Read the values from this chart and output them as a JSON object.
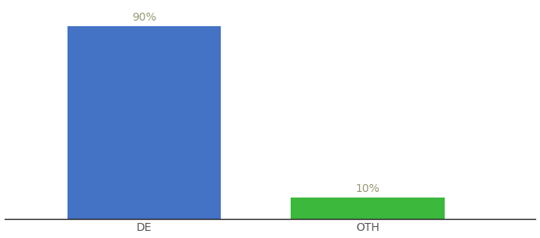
{
  "categories": [
    "DE",
    "OTH"
  ],
  "values": [
    90,
    10
  ],
  "bar_colors": [
    "#4472c4",
    "#3cb83c"
  ],
  "label_texts": [
    "90%",
    "10%"
  ],
  "background_color": "#ffffff",
  "figsize": [
    6.8,
    3.0
  ],
  "dpi": 100,
  "ylim": [
    0,
    100
  ],
  "label_fontsize": 10,
  "tick_fontsize": 10,
  "bar_width": 0.55,
  "xlim": [
    -0.2,
    1.7
  ],
  "label_color": "#999977"
}
